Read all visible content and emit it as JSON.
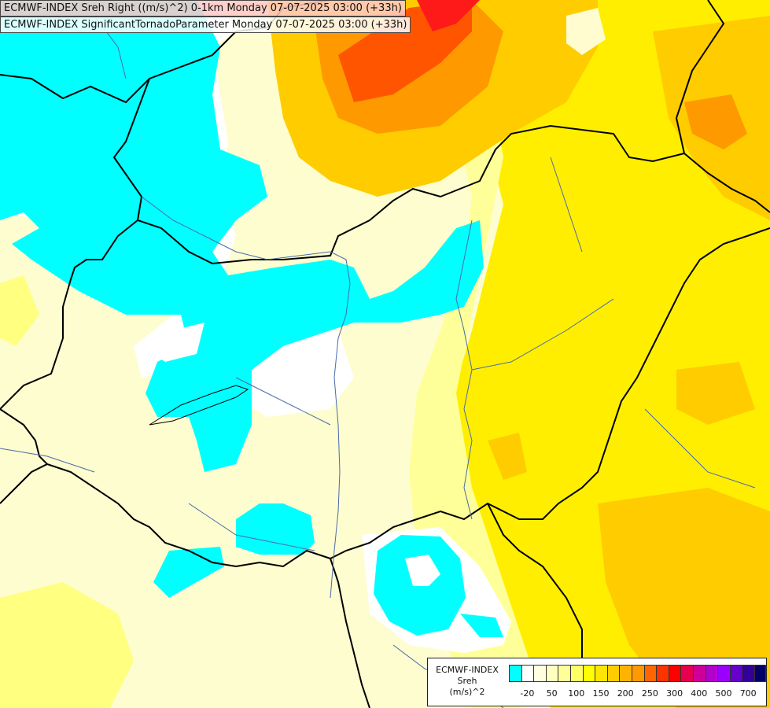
{
  "titles": {
    "line1": "ECMWF-INDEX Sreh Right ((m/s)^2) 0-1km Monday 07-07-2025 03:00 (+33h)",
    "line2": "ECMWF-INDEX SignificantTornadoParameter Monday 07-07-2025 03:00 (+33h)"
  },
  "legend": {
    "line1": "ECMWF-INDEX",
    "line2": "Sreh",
    "line3": "(m/s)^2",
    "colors": [
      "#00ffff",
      "#ffffff",
      "#ffffe0",
      "#ffffc0",
      "#ffff99",
      "#ffff66",
      "#ffff00",
      "#ffe600",
      "#ffcc00",
      "#ffb300",
      "#ff9900",
      "#ff6600",
      "#ff3300",
      "#ff0000",
      "#e6004d",
      "#cc0099",
      "#b300cc",
      "#9900ff",
      "#6600cc",
      "#330099",
      "#000066"
    ],
    "ticks": [
      "-20",
      "50",
      "100",
      "150",
      "200",
      "250",
      "300",
      "400",
      "500",
      "700"
    ]
  },
  "colors": {
    "cyan": "#00ffff",
    "white": "#ffffff",
    "pale_yellow": "#fdfdd0",
    "light_yellow": "#ffff99",
    "yellow": "#ffee00",
    "amber": "#ffcc00",
    "orange": "#ff9900",
    "red_orange": "#ff5500",
    "red": "#ff1a1a",
    "border": "#000000",
    "river": "#4a6aa8"
  }
}
